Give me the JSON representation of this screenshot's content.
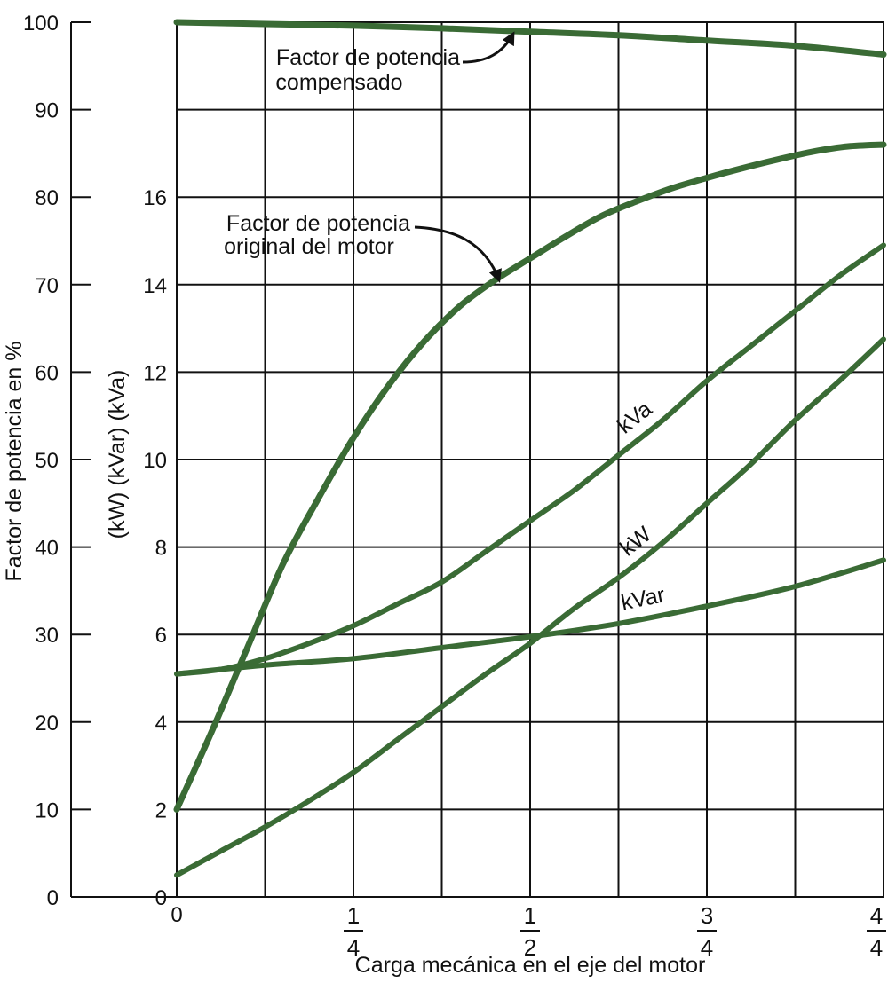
{
  "chart_data": {
    "type": "line",
    "title": "",
    "xlabel": "Carga mecánica en el eje del motor",
    "ylabel_left": "Factor de potencia en %",
    "ylabel_right": "(kW) (kVar) (kVa)",
    "xlim": [
      0,
      1
    ],
    "x_ticks": [
      {
        "value": 0,
        "label": "0"
      },
      {
        "value": 0.25,
        "num": "1",
        "den": "4"
      },
      {
        "value": 0.5,
        "num": "1",
        "den": "2"
      },
      {
        "value": 0.75,
        "num": "3",
        "den": "4"
      },
      {
        "value": 1,
        "num": "4",
        "den": "4"
      }
    ],
    "x_grid_step": 0.125,
    "left_axis": {
      "ylim": [
        0,
        100
      ],
      "ticks": [
        "0",
        "10",
        "20",
        "30",
        "40",
        "50",
        "60",
        "70",
        "80",
        "90",
        "100"
      ]
    },
    "right_axis": {
      "ylim": [
        0,
        20
      ],
      "ticks": [
        "0",
        "2",
        "4",
        "6",
        "8",
        "10",
        "12",
        "14",
        "16"
      ]
    },
    "grid": true,
    "line_color": "#3a6b35",
    "text_color": "#111111",
    "series": [
      {
        "name": "Factor de potencia compensado",
        "axis": "left",
        "x": [
          0,
          0.125,
          0.25,
          0.375,
          0.5,
          0.625,
          0.75,
          0.875,
          1
        ],
        "y": [
          100,
          99.8,
          99.6,
          99.3,
          98.9,
          98.5,
          97.9,
          97.3,
          96.3
        ]
      },
      {
        "name": "Factor de potencia original del motor",
        "axis": "left",
        "x": [
          0,
          0.05,
          0.1,
          0.15,
          0.2,
          0.25,
          0.3,
          0.35,
          0.4,
          0.45,
          0.5,
          0.55,
          0.6,
          0.65,
          0.7,
          0.75,
          0.8,
          0.85,
          0.9,
          0.95,
          1
        ],
        "y": [
          10,
          19,
          28.5,
          38,
          45.5,
          52.5,
          58.5,
          63.5,
          67.5,
          70.5,
          73,
          75.5,
          77.8,
          79.5,
          81,
          82.2,
          83.3,
          84.3,
          85.2,
          85.8,
          86
        ]
      },
      {
        "name": "kVa",
        "axis": "right",
        "label": "kVa",
        "x": [
          0,
          0.0625,
          0.125,
          0.1875,
          0.25,
          0.3125,
          0.375,
          0.4375,
          0.5,
          0.5625,
          0.625,
          0.6875,
          0.75,
          0.8125,
          0.875,
          0.9375,
          1
        ],
        "y": [
          5.1,
          5.2,
          5.45,
          5.8,
          6.2,
          6.7,
          7.2,
          7.9,
          8.6,
          9.3,
          10.1,
          10.9,
          11.8,
          12.6,
          13.4,
          14.2,
          14.9
        ]
      },
      {
        "name": "kW",
        "axis": "right",
        "label": "kW",
        "x": [
          0,
          0.0625,
          0.125,
          0.1875,
          0.25,
          0.3125,
          0.375,
          0.4375,
          0.5,
          0.5625,
          0.625,
          0.6875,
          0.75,
          0.8125,
          0.875,
          0.9375,
          1
        ],
        "y": [
          0.5,
          1.05,
          1.6,
          2.2,
          2.85,
          3.6,
          4.35,
          5.1,
          5.8,
          6.6,
          7.3,
          8.1,
          9.0,
          9.9,
          10.9,
          11.8,
          12.75
        ]
      },
      {
        "name": "kVar",
        "axis": "right",
        "label": "kVar",
        "x": [
          0,
          0.125,
          0.25,
          0.375,
          0.5,
          0.625,
          0.75,
          0.875,
          1
        ],
        "y": [
          5.1,
          5.3,
          5.45,
          5.7,
          5.95,
          6.25,
          6.65,
          7.1,
          7.7
        ]
      }
    ],
    "annotations": [
      {
        "lines": [
          "Factor de potencia",
          "compensado"
        ],
        "target_series": "Factor de potencia compensado"
      },
      {
        "lines": [
          "Factor de potencia",
          "original del motor"
        ],
        "target_series": "Factor de potencia original del motor"
      }
    ]
  }
}
